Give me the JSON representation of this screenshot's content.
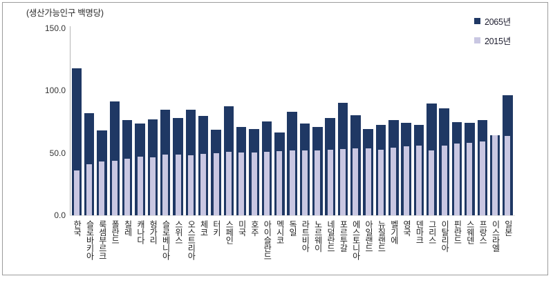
{
  "chart_data": {
    "type": "bar",
    "unit_label": "(생산가능인구 백명당)",
    "categories": [
      "한국",
      "슬로바키아",
      "룩셈부르크",
      "폴란드",
      "칠레",
      "캐나다",
      "헝가리",
      "슬로베니아",
      "스위스",
      "오스트리아",
      "체코",
      "터키",
      "스페인",
      "미국",
      "호주",
      "아이슬란드",
      "멕시코",
      "독일",
      "라트비아",
      "노르웨이",
      "네덜란드",
      "포르투갈",
      "에스토니아",
      "아일랜드",
      "뉴질랜드",
      "벨기에",
      "영국",
      "덴마크",
      "그리스",
      "이탈리아",
      "핀란드",
      "스웨덴",
      "프랑스",
      "이스라엘",
      "일본"
    ],
    "series": [
      {
        "name": "2065년",
        "color": "#1f3864",
        "values": [
          117.8,
          82.0,
          68.0,
          91.3,
          76.2,
          73.8,
          77.1,
          84.5,
          78.2,
          84.7,
          79.5,
          68.8,
          87.3,
          70.7,
          69.4,
          75.3,
          66.2,
          83.0,
          73.8,
          70.7,
          78.0,
          90.4,
          80.3,
          69.4,
          72.7,
          76.2,
          74.3,
          72.7,
          89.5,
          85.8,
          74.7,
          74.3,
          76.4,
          64.5,
          96.5
        ]
      },
      {
        "name": "2015년",
        "color": "#c9c7e2",
        "values": [
          36.2,
          41.0,
          43.2,
          44.0,
          45.4,
          47.2,
          46.3,
          48.7,
          48.9,
          48.2,
          49.1,
          49.6,
          50.9,
          50.5,
          50.5,
          51.1,
          51.3,
          51.9,
          51.9,
          51.9,
          52.8,
          53.0,
          53.7,
          53.5,
          52.4,
          54.4,
          55.5,
          55.9,
          52.2,
          56.1,
          57.7,
          58.3,
          59.2,
          64.2,
          63.5
        ]
      }
    ],
    "ylim": [
      0,
      150
    ],
    "ytick_labels": [
      "150.0",
      "100.0",
      "50.0",
      "0.0"
    ],
    "grid": false,
    "legend_position": "top-right"
  }
}
